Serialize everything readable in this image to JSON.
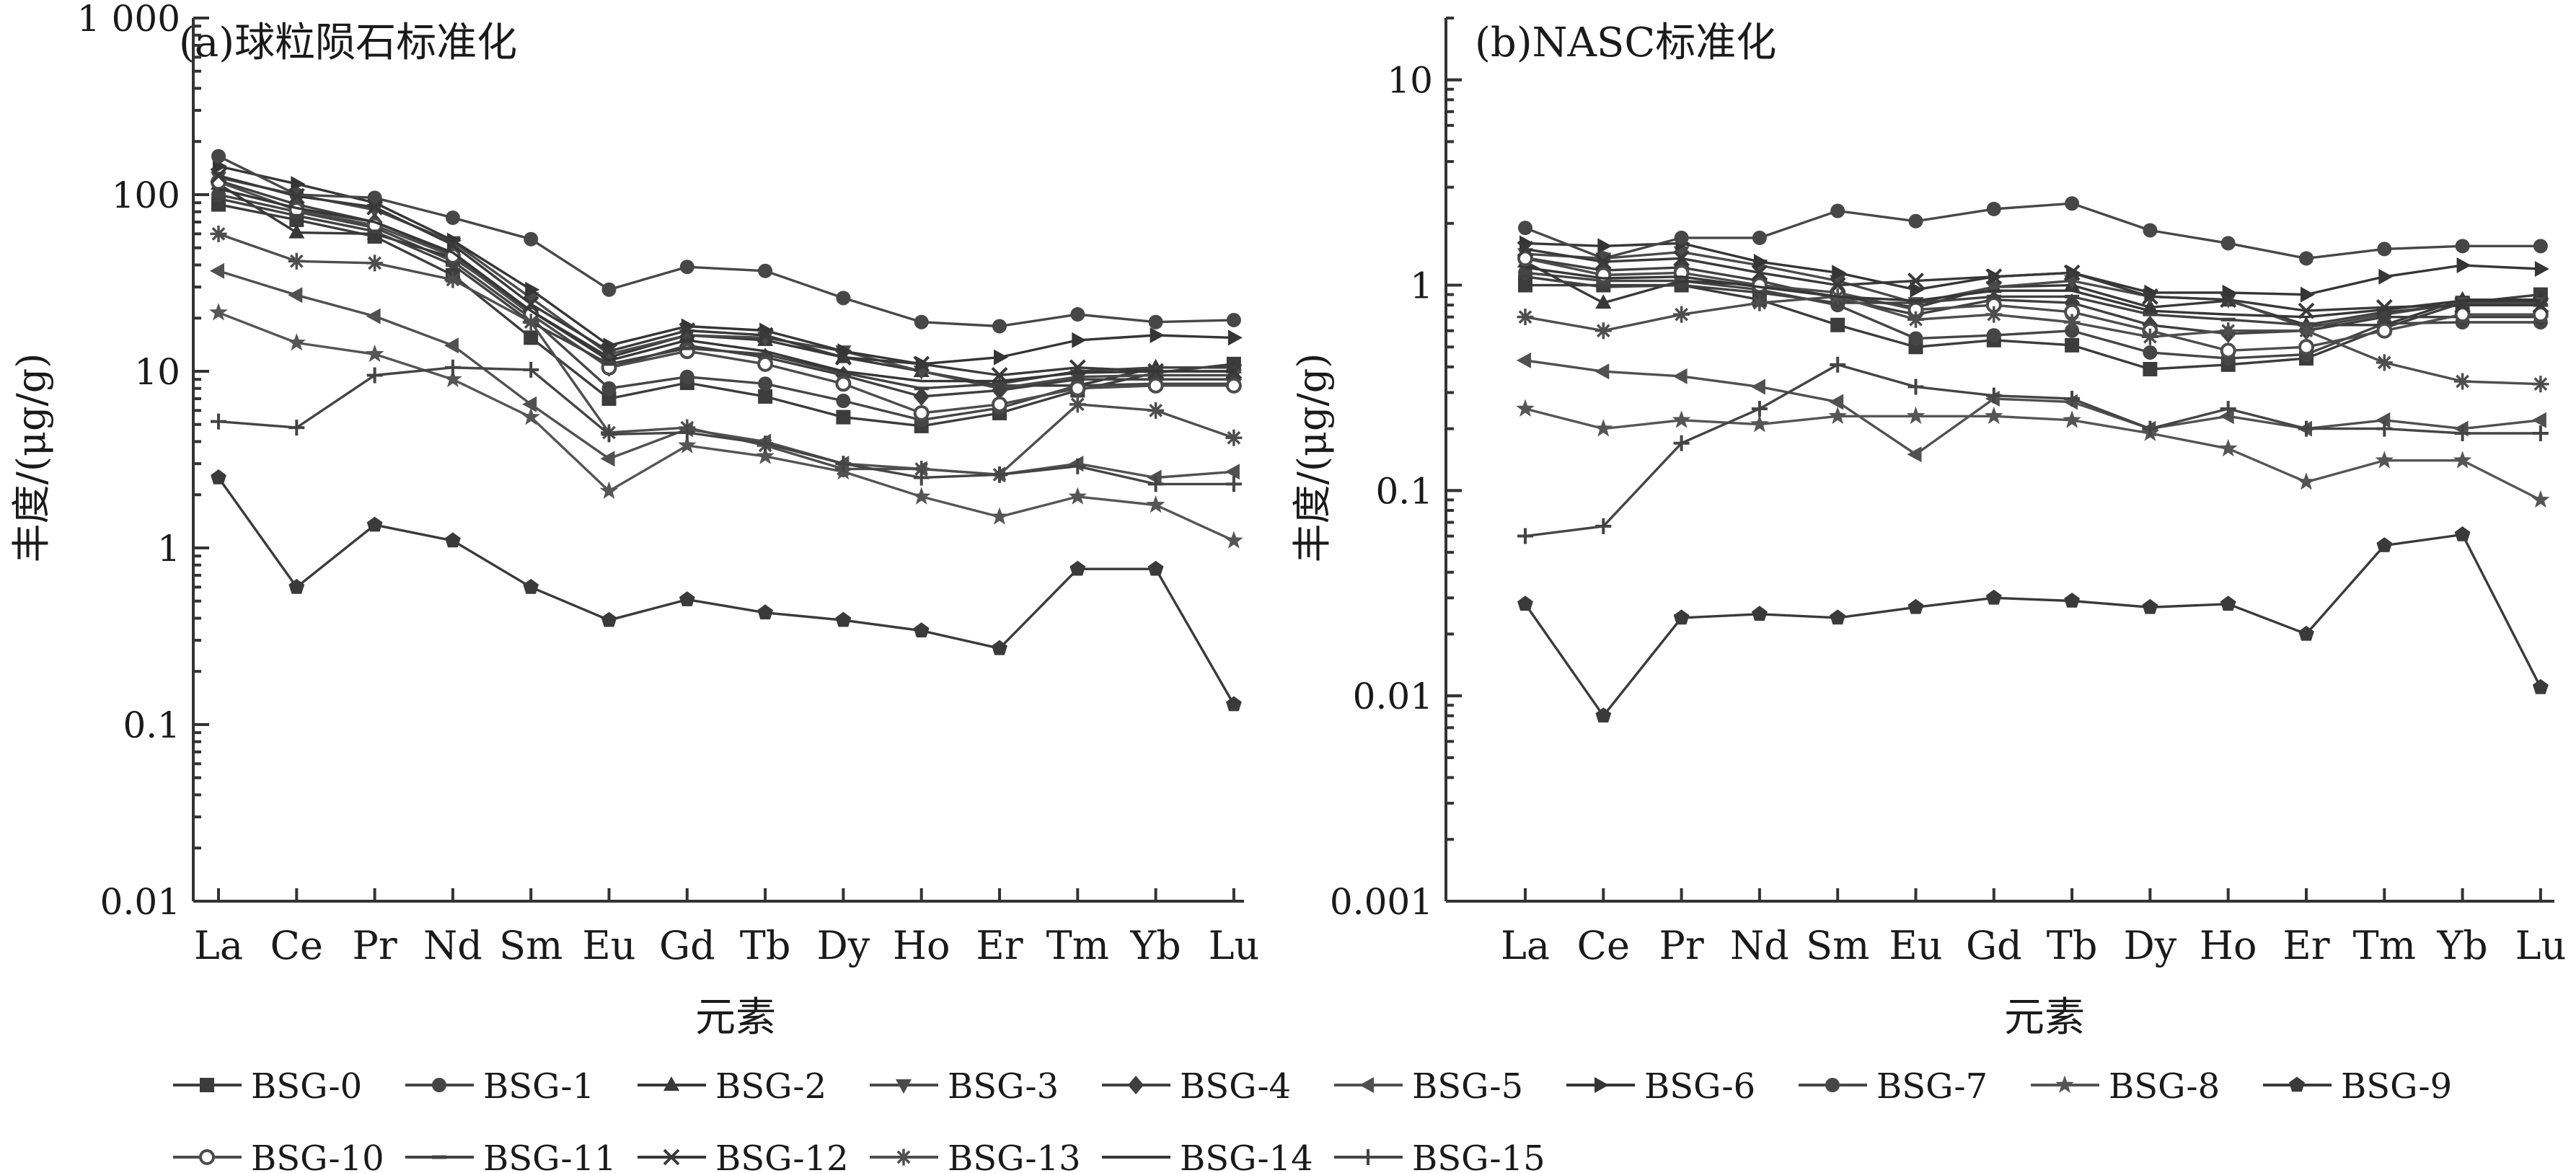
{
  "chart_data": [
    {
      "type": "line",
      "title": "(a)球粒陨石标准化",
      "xlabel": "元素",
      "ylabel": "丰度/(μg/g)",
      "yscale": "log",
      "ylim": [
        0.01,
        1000
      ],
      "yticks": [
        {
          "value": 0.01,
          "label": "0.01"
        },
        {
          "value": 0.1,
          "label": "0.1"
        },
        {
          "value": 1,
          "label": "1"
        },
        {
          "value": 10,
          "label": "10"
        },
        {
          "value": 100,
          "label": "100"
        },
        {
          "value": 1000,
          "label": "1 000"
        }
      ],
      "categories": [
        "La",
        "Ce",
        "Pr",
        "Nd",
        "Sm",
        "Eu",
        "Gd",
        "Tb",
        "Dy",
        "Ho",
        "Er",
        "Tm",
        "Yb",
        "Lu"
      ],
      "grid": false,
      "series": [
        {
          "name": "BSG-0",
          "marker": "square",
          "values": [
            88,
            72,
            58,
            35,
            15.5,
            7.0,
            8.6,
            7.2,
            5.5,
            4.9,
            5.8,
            7.8,
            9.8,
            11
          ]
        },
        {
          "name": "BSG-1",
          "marker": "circle",
          "values": [
            100,
            80,
            65,
            42,
            20,
            8.0,
            9.3,
            8.5,
            6.8,
            5.3,
            6.2,
            8.3,
            8.5,
            8.5
          ]
        },
        {
          "name": "BSG-2",
          "marker": "triangle-up",
          "values": [
            115,
            61,
            60,
            44,
            22,
            12,
            16,
            15,
            12,
            10,
            8.3,
            8.3,
            10.5,
            10.5
          ]
        },
        {
          "name": "BSG-3",
          "marker": "triangle-down",
          "values": [
            125,
            100,
            82,
            54,
            26,
            12.5,
            16,
            15.5,
            13,
            10,
            8.0,
            9.3,
            9.5,
            9.5
          ]
        },
        {
          "name": "BSG-4",
          "marker": "diamond",
          "values": [
            120,
            88,
            70,
            46,
            21,
            10.5,
            14,
            12,
            9.5,
            7.2,
            7.8,
            9.0,
            9.0,
            9.0
          ]
        },
        {
          "name": "BSG-5",
          "marker": "triangle-left",
          "values": [
            37,
            27,
            20.5,
            14,
            6.5,
            3.2,
            4.7,
            4.0,
            3.0,
            2.8,
            2.6,
            3.0,
            2.5,
            2.7
          ]
        },
        {
          "name": "BSG-6",
          "marker": "triangle-right",
          "values": [
            145,
            115,
            90,
            55,
            29,
            14,
            18,
            17,
            13,
            11,
            12,
            15,
            16,
            15.5
          ]
        },
        {
          "name": "BSG-7",
          "marker": "circle",
          "values": [
            165,
            100,
            96,
            74,
            56,
            29,
            39,
            37,
            26,
            19,
            18,
            21,
            19,
            19.5
          ]
        },
        {
          "name": "BSG-8",
          "marker": "star",
          "values": [
            21.5,
            14.5,
            12.5,
            9.0,
            5.5,
            2.1,
            3.8,
            3.3,
            2.7,
            1.95,
            1.5,
            1.95,
            1.75,
            1.1
          ]
        },
        {
          "name": "BSG-9",
          "marker": "pentagon",
          "values": [
            2.5,
            0.6,
            1.35,
            1.1,
            0.6,
            0.39,
            0.51,
            0.43,
            0.39,
            0.34,
            0.27,
            0.76,
            0.76,
            0.13
          ]
        },
        {
          "name": "BSG-10",
          "marker": "open-circle",
          "values": [
            118,
            82,
            67,
            45,
            21,
            10.5,
            13,
            11,
            8.5,
            5.8,
            6.5,
            8.0,
            8.3,
            8.3
          ]
        },
        {
          "name": "BSG-11",
          "marker": "dash",
          "values": [
            95,
            76,
            62,
            40,
            19,
            11,
            13.5,
            12.5,
            9.8,
            8.0,
            8.5,
            10,
            10.5,
            10.5
          ]
        },
        {
          "name": "BSG-12",
          "marker": "cross",
          "values": [
            128,
            98,
            85,
            52,
            24,
            13,
            17,
            16,
            12,
            11,
            9.5,
            10.5,
            10,
            10
          ]
        },
        {
          "name": "BSG-13",
          "marker": "asterisk",
          "values": [
            60,
            42,
            41,
            33,
            19,
            4.5,
            4.8,
            3.8,
            2.8,
            2.8,
            2.6,
            6.5,
            6.0,
            4.2
          ]
        },
        {
          "name": "BSG-14",
          "marker": "none",
          "values": [
            108,
            84,
            70,
            47,
            22,
            11.5,
            15,
            13,
            10,
            8.8,
            8.8,
            9.8,
            10,
            10
          ]
        },
        {
          "name": "BSG-15",
          "marker": "plus",
          "values": [
            5.2,
            4.8,
            9.5,
            10.5,
            10.2,
            4.4,
            4.5,
            3.9,
            3.0,
            2.5,
            2.6,
            2.9,
            2.3,
            2.3
          ]
        }
      ]
    },
    {
      "type": "line",
      "title": "(b)NASC标准化",
      "xlabel": "元素",
      "ylabel": "丰度/(μg/g)",
      "yscale": "log",
      "ylim": [
        0.001,
        20
      ],
      "yticks": [
        {
          "value": 0.001,
          "label": "0.001"
        },
        {
          "value": 0.01,
          "label": "0.01"
        },
        {
          "value": 0.1,
          "label": "0.1"
        },
        {
          "value": 1,
          "label": "1"
        },
        {
          "value": 10,
          "label": "10"
        }
      ],
      "categories": [
        "La",
        "Ce",
        "Pr",
        "Nd",
        "Sm",
        "Eu",
        "Gd",
        "Tb",
        "Dy",
        "Ho",
        "Er",
        "Tm",
        "Yb",
        "Lu"
      ],
      "grid": false,
      "series": [
        {
          "name": "BSG-0",
          "marker": "square",
          "values": [
            1.0,
            1.0,
            1.0,
            0.85,
            0.64,
            0.5,
            0.54,
            0.51,
            0.39,
            0.41,
            0.44,
            0.62,
            0.82,
            0.9
          ]
        },
        {
          "name": "BSG-1",
          "marker": "circle",
          "values": [
            1.15,
            1.05,
            1.05,
            0.95,
            0.8,
            0.55,
            0.57,
            0.6,
            0.47,
            0.44,
            0.46,
            0.65,
            0.66,
            0.66
          ]
        },
        {
          "name": "BSG-2",
          "marker": "triangle-up",
          "values": [
            1.3,
            0.82,
            1.05,
            1.0,
            0.88,
            0.78,
            0.98,
            1.0,
            0.78,
            0.84,
            0.64,
            0.64,
            0.85,
            0.85
          ]
        },
        {
          "name": "BSG-3",
          "marker": "triangle-down",
          "values": [
            1.42,
            1.35,
            1.45,
            1.25,
            1.05,
            0.82,
            0.98,
            1.05,
            0.88,
            0.85,
            0.62,
            0.72,
            0.82,
            0.82
          ]
        },
        {
          "name": "BSG-4",
          "marker": "diamond",
          "values": [
            1.36,
            1.18,
            1.22,
            1.05,
            0.86,
            0.72,
            0.85,
            0.82,
            0.64,
            0.58,
            0.6,
            0.7,
            0.7,
            0.7
          ]
        },
        {
          "name": "BSG-5",
          "marker": "triangle-left",
          "values": [
            0.43,
            0.38,
            0.36,
            0.32,
            0.27,
            0.15,
            0.28,
            0.27,
            0.2,
            0.23,
            0.2,
            0.22,
            0.2,
            0.22
          ]
        },
        {
          "name": "BSG-6",
          "marker": "triangle-right",
          "values": [
            1.6,
            1.55,
            1.6,
            1.3,
            1.15,
            0.95,
            1.1,
            1.15,
            0.92,
            0.92,
            0.9,
            1.1,
            1.25,
            1.2
          ]
        },
        {
          "name": "BSG-7",
          "marker": "circle",
          "values": [
            1.9,
            1.35,
            1.7,
            1.7,
            2.3,
            2.05,
            2.35,
            2.5,
            1.85,
            1.6,
            1.35,
            1.5,
            1.55,
            1.55
          ]
        },
        {
          "name": "BSG-8",
          "marker": "star",
          "values": [
            0.25,
            0.2,
            0.22,
            0.21,
            0.23,
            0.23,
            0.23,
            0.22,
            0.19,
            0.16,
            0.11,
            0.14,
            0.14,
            0.09
          ]
        },
        {
          "name": "BSG-9",
          "marker": "pentagon",
          "values": [
            0.028,
            0.008,
            0.024,
            0.025,
            0.024,
            0.027,
            0.03,
            0.029,
            0.027,
            0.028,
            0.02,
            0.054,
            0.061,
            0.011
          ]
        },
        {
          "name": "BSG-10",
          "marker": "open-circle",
          "values": [
            1.35,
            1.12,
            1.15,
            1.0,
            0.92,
            0.76,
            0.8,
            0.74,
            0.6,
            0.48,
            0.5,
            0.6,
            0.72,
            0.72
          ]
        },
        {
          "name": "BSG-11",
          "marker": "dash",
          "values": [
            1.1,
            0.98,
            1.0,
            0.92,
            0.82,
            0.82,
            0.88,
            0.88,
            0.72,
            0.68,
            0.64,
            0.74,
            0.8,
            0.8
          ]
        },
        {
          "name": "BSG-12",
          "marker": "cross",
          "values": [
            1.5,
            1.3,
            1.35,
            1.15,
            1.0,
            1.05,
            1.1,
            1.15,
            0.88,
            0.85,
            0.75,
            0.78,
            0.8,
            0.8
          ]
        },
        {
          "name": "BSG-13",
          "marker": "asterisk",
          "values": [
            0.7,
            0.6,
            0.72,
            0.82,
            0.88,
            0.68,
            0.72,
            0.66,
            0.56,
            0.6,
            0.6,
            0.42,
            0.34,
            0.33
          ]
        },
        {
          "name": "BSG-14",
          "marker": "none",
          "values": [
            1.22,
            1.08,
            1.1,
            0.98,
            0.88,
            0.84,
            0.94,
            0.94,
            0.75,
            0.72,
            0.7,
            0.76,
            0.84,
            0.84
          ]
        },
        {
          "name": "BSG-15",
          "marker": "plus",
          "values": [
            0.06,
            0.067,
            0.17,
            0.25,
            0.41,
            0.32,
            0.29,
            0.28,
            0.2,
            0.25,
            0.2,
            0.2,
            0.19,
            0.19
          ]
        }
      ]
    }
  ],
  "legend": {
    "placement": "bottom",
    "items": [
      "BSG-0",
      "BSG-1",
      "BSG-2",
      "BSG-3",
      "BSG-4",
      "BSG-5",
      "BSG-6",
      "BSG-7",
      "BSG-8",
      "BSG-9",
      "BSG-10",
      "BSG-11",
      "BSG-12",
      "BSG-13",
      "BSG-14",
      "BSG-15"
    ]
  },
  "colors": {
    "axis": "#333333",
    "series": [
      "#3c3c3c",
      "#454545",
      "#383838",
      "#4a4a4a",
      "#3f3f3f",
      "#505050",
      "#353535",
      "#474747",
      "#555555",
      "#3a3a3a",
      "#4c4c4c",
      "#414141",
      "#393939",
      "#4e4e4e",
      "#363636",
      "#444444"
    ]
  }
}
